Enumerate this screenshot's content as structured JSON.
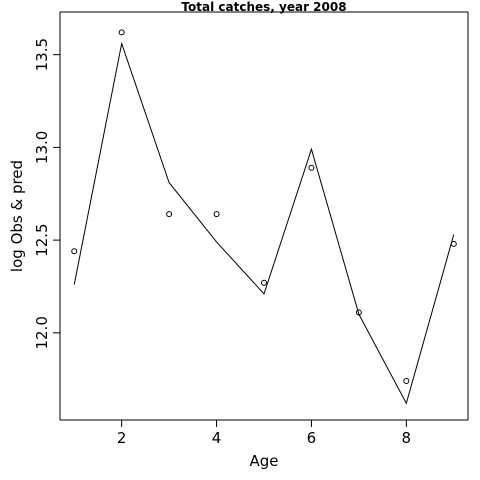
{
  "chart_data": {
    "type": "line",
    "title": "Total catches, year 2008",
    "xlabel": "Age",
    "ylabel": "log Obs & pred",
    "xlim": [
      0.7,
      9.3
    ],
    "ylim": [
      11.53,
      13.73
    ],
    "x_ticks": [
      2,
      4,
      6,
      8
    ],
    "x_tick_labels": [
      "2",
      "4",
      "6",
      "8"
    ],
    "y_ticks": [
      12.0,
      12.5,
      13.0,
      13.5
    ],
    "y_tick_labels": [
      "12.0",
      "12.5",
      "13.0",
      "13.5"
    ],
    "grid": false,
    "series": [
      {
        "kind": "points",
        "x": [
          1,
          2,
          3,
          4,
          5,
          6,
          7,
          8,
          9
        ],
        "y": [
          12.44,
          13.62,
          12.64,
          12.64,
          12.27,
          12.89,
          12.11,
          11.74,
          12.48
        ]
      },
      {
        "kind": "line",
        "x": [
          1,
          2,
          3,
          4,
          5,
          6,
          7,
          8,
          9
        ],
        "y": [
          12.26,
          13.56,
          12.81,
          12.49,
          12.21,
          12.99,
          12.1,
          11.62,
          12.53
        ]
      }
    ]
  }
}
